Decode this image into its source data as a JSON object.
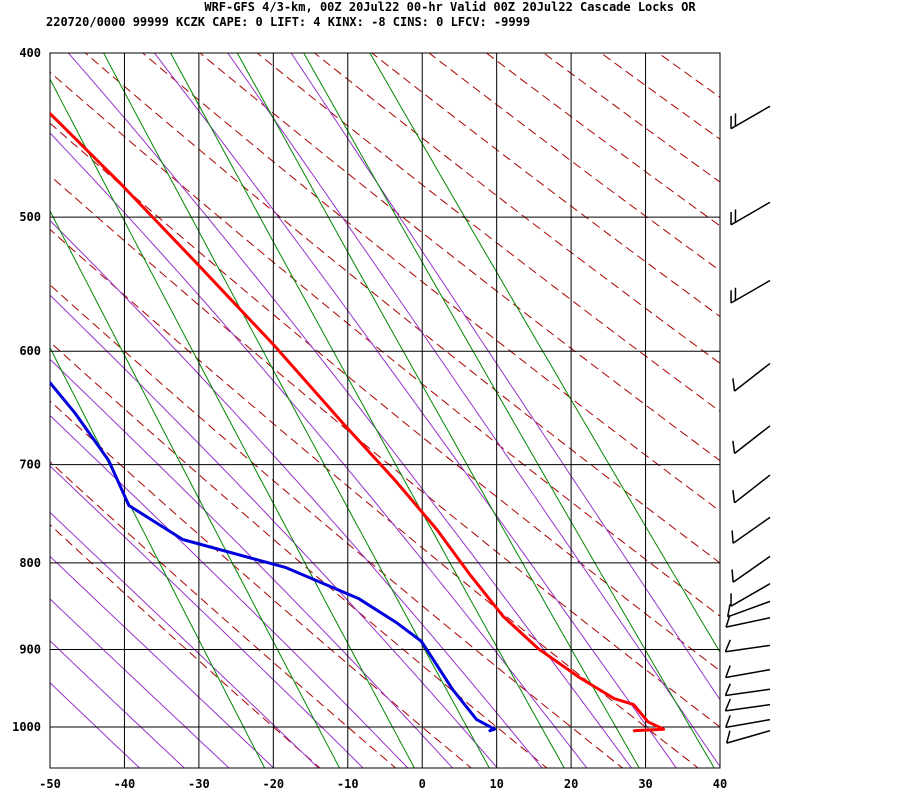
{
  "header": {
    "line1": "WRF-GFS 4/3-km, 00Z 20Jul22 00-hr Valid 00Z 20Jul22 Cascade Locks OR",
    "line2": "220720/0000 99999  KCZK    CAPE:     0 LIFT:     4 KINX:    -8 CINS:     0 LFCV: -9999"
  },
  "chart_data": {
    "type": "line",
    "chart_kind": "skew-T log-P sounding",
    "x_axis": {
      "range": [
        -50,
        40
      ],
      "ticks": [
        -50,
        -40,
        -30,
        -20,
        -10,
        0,
        10,
        20,
        30,
        40
      ]
    },
    "y_axis": {
      "scale": "log",
      "range": [
        400,
        1040
      ],
      "ticks": [
        400,
        500,
        600,
        700,
        800,
        900,
        1000
      ]
    },
    "grid": true,
    "colors": {
      "temperature": "#ff0000",
      "dewpoint": "#0000dd",
      "dry_adiabat": "#aa0000",
      "moist_adiabat": "#9933cc",
      "mixing_ratio": "#008800",
      "grid": "#000000",
      "wind_barb": "#000000"
    },
    "series": [
      {
        "key": "temperature",
        "points": [
          [
            28.3,
            1005
          ],
          [
            32.3,
            1003
          ],
          [
            30.6,
            993
          ],
          [
            29.6,
            970
          ],
          [
            27.3,
            962
          ],
          [
            23.8,
            935
          ],
          [
            19.8,
            899
          ],
          [
            16.8,
            860
          ],
          [
            14.6,
            813
          ],
          [
            12.6,
            765
          ],
          [
            9.6,
            715
          ],
          [
            5.7,
            662
          ],
          [
            0.6,
            595
          ],
          [
            -5.4,
            532
          ],
          [
            -11.3,
            478
          ],
          [
            -17.9,
            428
          ]
        ]
      },
      {
        "key": "dewpoint",
        "points": [
          [
            8.9,
            1005
          ],
          [
            9.6,
            1003
          ],
          [
            7.7,
            990
          ],
          [
            6.1,
            950
          ],
          [
            4.5,
            890
          ],
          [
            2.2,
            868
          ],
          [
            -1.6,
            840
          ],
          [
            -9.8,
            805
          ],
          [
            -22.1,
            775
          ],
          [
            -27.5,
            740
          ],
          [
            -27.8,
            696
          ],
          [
            -29.8,
            652
          ],
          [
            -33.3,
            600
          ],
          [
            -36.4,
            543
          ],
          [
            -39.8,
            499
          ],
          [
            -42.2,
            476
          ],
          [
            -44.1,
            428
          ]
        ]
      }
    ],
    "wind_barbs": [
      {
        "p": 1005,
        "dir_deg": 254,
        "speed_kt": 10
      },
      {
        "p": 990,
        "dir_deg": 260,
        "speed_kt": 10
      },
      {
        "p": 970,
        "dir_deg": 262,
        "speed_kt": 10
      },
      {
        "p": 950,
        "dir_deg": 262,
        "speed_kt": 10
      },
      {
        "p": 925,
        "dir_deg": 260,
        "speed_kt": 10
      },
      {
        "p": 895,
        "dir_deg": 262,
        "speed_kt": 10
      },
      {
        "p": 862,
        "dir_deg": 258,
        "speed_kt": 10
      },
      {
        "p": 843,
        "dir_deg": 250,
        "speed_kt": 10
      },
      {
        "p": 823,
        "dir_deg": 240,
        "speed_kt": 10
      },
      {
        "p": 793,
        "dir_deg": 235,
        "speed_kt": 10
      },
      {
        "p": 752,
        "dir_deg": 235,
        "speed_kt": 10
      },
      {
        "p": 710,
        "dir_deg": 232,
        "speed_kt": 10
      },
      {
        "p": 664,
        "dir_deg": 232,
        "speed_kt": 10
      },
      {
        "p": 610,
        "dir_deg": 232,
        "speed_kt": 10
      },
      {
        "p": 545,
        "dir_deg": 240,
        "speed_kt": 20
      },
      {
        "p": 490,
        "dir_deg": 240,
        "speed_kt": 20
      },
      {
        "p": 430,
        "dir_deg": 240,
        "speed_kt": 20
      }
    ]
  }
}
